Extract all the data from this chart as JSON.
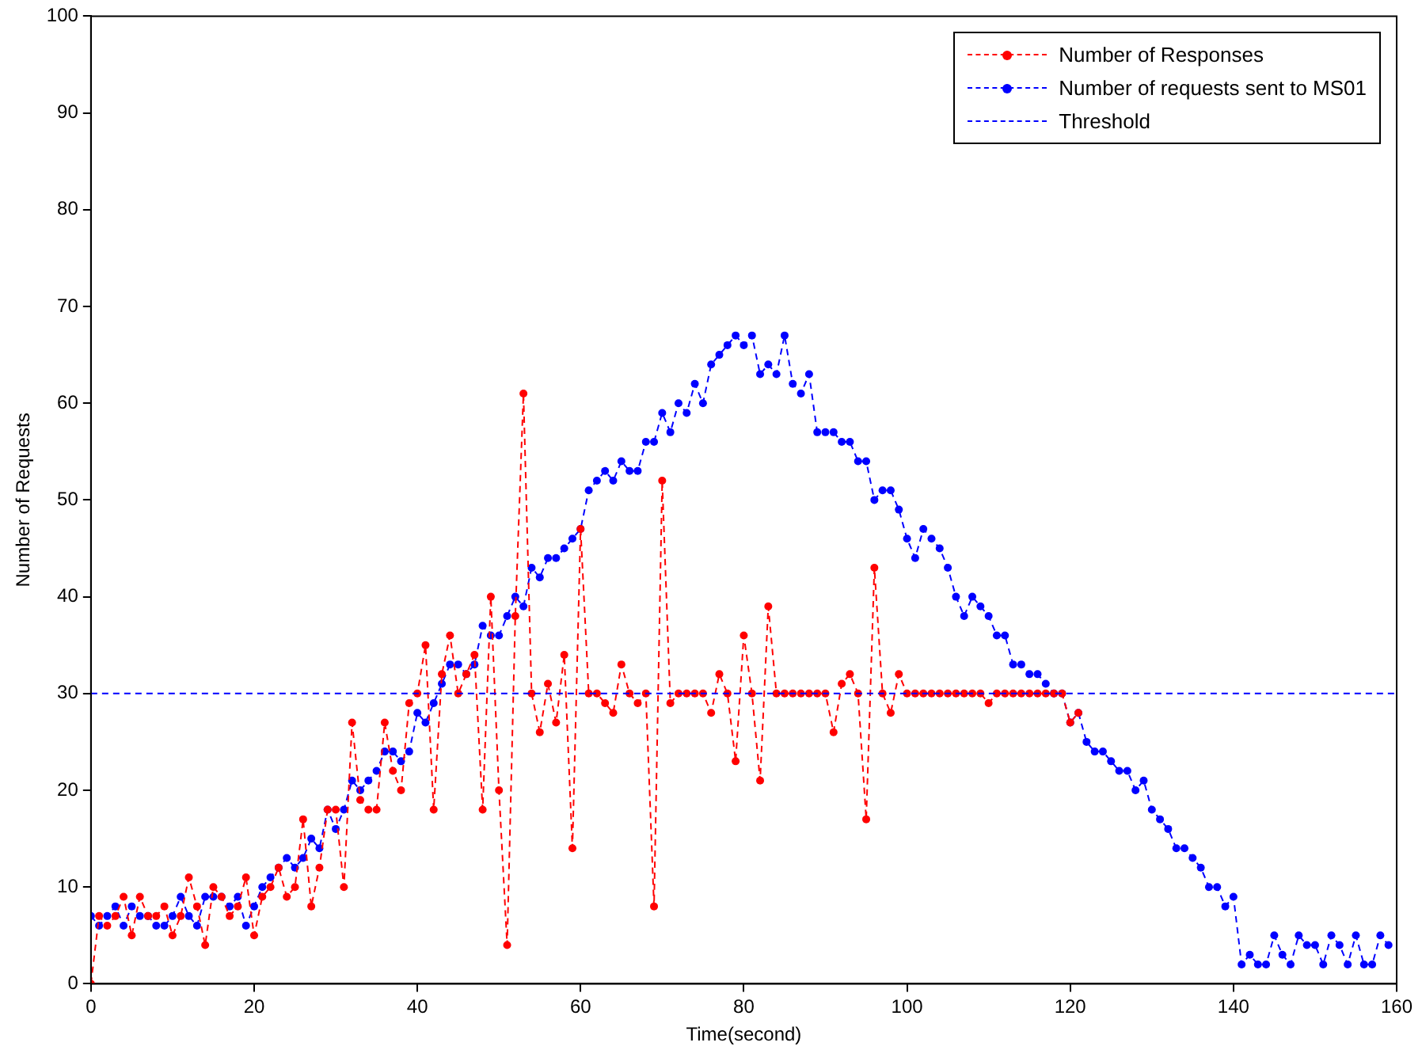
{
  "chart_data": {
    "type": "line",
    "xlabel": "Time(second)",
    "ylabel": "Number of Requests",
    "xlim": [
      0,
      160
    ],
    "xticks": [
      0,
      20,
      40,
      60,
      80,
      100,
      120,
      140,
      160
    ],
    "ylim": [
      0,
      100
    ],
    "yticks": [
      0,
      10,
      20,
      30,
      40,
      50,
      60,
      70,
      80,
      90,
      100
    ],
    "grid": false,
    "legend": "top right",
    "marker": "circle",
    "line_style": "dashed",
    "series": [
      {
        "name": "Number of Responses",
        "color": "#ff0000",
        "x": [
          0,
          1,
          2,
          3,
          4,
          5,
          6,
          7,
          8,
          9,
          10,
          11,
          12,
          13,
          14,
          15,
          16,
          17,
          18,
          19,
          20,
          21,
          22,
          23,
          24,
          25,
          26,
          27,
          28,
          29,
          30,
          31,
          32,
          33,
          34,
          35,
          36,
          37,
          38,
          39,
          40,
          41,
          42,
          43,
          44,
          45,
          46,
          47,
          48,
          49,
          50,
          51,
          52,
          53,
          54,
          55,
          56,
          57,
          58,
          59,
          60,
          61,
          62,
          63,
          64,
          65,
          66,
          67,
          68,
          69,
          70,
          71,
          72,
          73,
          74,
          75,
          76,
          77,
          78,
          79,
          80,
          81,
          82,
          83,
          84,
          85,
          86,
          87,
          88,
          89,
          90,
          91,
          92,
          93,
          94,
          95,
          96,
          97,
          98,
          99,
          100,
          101,
          102,
          103,
          104,
          105,
          106,
          107,
          108,
          109,
          110,
          111,
          112,
          113,
          114,
          115,
          116,
          117,
          118,
          119,
          120,
          121
        ],
        "values": [
          0,
          7,
          6,
          7,
          9,
          5,
          9,
          7,
          7,
          8,
          5,
          7,
          11,
          8,
          4,
          10,
          9,
          7,
          8,
          11,
          5,
          9,
          10,
          12,
          9,
          10,
          17,
          8,
          12,
          18,
          18,
          10,
          27,
          19,
          18,
          18,
          27,
          22,
          20,
          29,
          30,
          35,
          18,
          32,
          36,
          30,
          32,
          34,
          18,
          40,
          20,
          4,
          38,
          61,
          30,
          26,
          31,
          27,
          34,
          14,
          47,
          30,
          30,
          29,
          28,
          33,
          30,
          29,
          30,
          8,
          52,
          29,
          30,
          30,
          30,
          30,
          28,
          32,
          30,
          23,
          36,
          30,
          21,
          39,
          30,
          30,
          30,
          30,
          30,
          30,
          30,
          26,
          31,
          32,
          30,
          17,
          43,
          30,
          28,
          32,
          30,
          30,
          30,
          30,
          30,
          30,
          30,
          30,
          30,
          30,
          29,
          30,
          30,
          30,
          30,
          30,
          30,
          30,
          30,
          30,
          27,
          28
        ]
      },
      {
        "name": "Number of requests sent to MS01",
        "color": "#0000ff",
        "x": [
          0,
          1,
          2,
          3,
          4,
          5,
          6,
          7,
          8,
          9,
          10,
          11,
          12,
          13,
          14,
          15,
          16,
          17,
          18,
          19,
          20,
          21,
          22,
          23,
          24,
          25,
          26,
          27,
          28,
          29,
          30,
          31,
          32,
          33,
          34,
          35,
          36,
          37,
          38,
          39,
          40,
          41,
          42,
          43,
          44,
          45,
          46,
          47,
          48,
          49,
          50,
          51,
          52,
          53,
          54,
          55,
          56,
          57,
          58,
          59,
          60,
          61,
          62,
          63,
          64,
          65,
          66,
          67,
          68,
          69,
          70,
          71,
          72,
          73,
          74,
          75,
          76,
          77,
          78,
          79,
          80,
          81,
          82,
          83,
          84,
          85,
          86,
          87,
          88,
          89,
          90,
          91,
          92,
          93,
          94,
          95,
          96,
          97,
          98,
          99,
          100,
          101,
          102,
          103,
          104,
          105,
          106,
          107,
          108,
          109,
          110,
          111,
          112,
          113,
          114,
          115,
          116,
          117,
          118,
          119,
          120,
          121,
          122,
          123,
          124,
          125,
          126,
          127,
          128,
          129,
          130,
          131,
          132,
          133,
          134,
          135,
          136,
          137,
          138,
          139,
          140,
          141,
          142,
          143,
          144,
          145,
          146,
          147,
          148,
          149,
          150,
          151,
          152,
          153,
          154,
          155,
          156,
          157,
          158,
          159
        ],
        "values": [
          7,
          6,
          7,
          8,
          6,
          8,
          7,
          7,
          6,
          6,
          7,
          9,
          7,
          6,
          9,
          9,
          9,
          8,
          9,
          6,
          8,
          10,
          11,
          12,
          13,
          12,
          13,
          15,
          14,
          18,
          16,
          18,
          21,
          20,
          21,
          22,
          24,
          24,
          23,
          24,
          28,
          27,
          29,
          31,
          33,
          33,
          32,
          33,
          37,
          36,
          36,
          38,
          40,
          39,
          43,
          42,
          44,
          44,
          45,
          46,
          47,
          51,
          52,
          53,
          52,
          54,
          53,
          53,
          56,
          56,
          59,
          57,
          60,
          59,
          62,
          60,
          64,
          65,
          66,
          67,
          66,
          67,
          63,
          64,
          63,
          67,
          62,
          61,
          63,
          57,
          57,
          57,
          56,
          56,
          54,
          54,
          50,
          51,
          51,
          49,
          46,
          44,
          47,
          46,
          45,
          43,
          40,
          38,
          40,
          39,
          38,
          36,
          36,
          33,
          33,
          32,
          32,
          31,
          30,
          30,
          27,
          28,
          25,
          24,
          24,
          23,
          22,
          22,
          20,
          21,
          18,
          17,
          16,
          14,
          14,
          13,
          12,
          10,
          10,
          8,
          9,
          2,
          3,
          2,
          2,
          5,
          3,
          2,
          5,
          4,
          4,
          2,
          5,
          4,
          2,
          5,
          2,
          2,
          5,
          4
        ]
      }
    ],
    "ref_lines": [
      {
        "axis": "y",
        "value": 30,
        "label": "Threshold",
        "color": "#0000ff",
        "line_style": "dashed"
      }
    ]
  }
}
